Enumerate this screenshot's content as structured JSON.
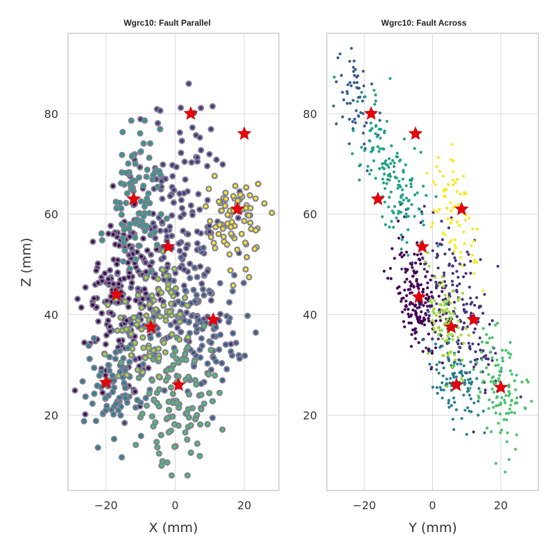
{
  "chart_data": [
    {
      "type": "scatter",
      "title": "Wgrc10: Fault Parallel",
      "xlabel": "X (mm)",
      "ylabel": "Z (mm)",
      "xlim": [
        -31,
        30
      ],
      "ylim": [
        5,
        96
      ],
      "xticks": [
        -20,
        0,
        20
      ],
      "xtick_labels": [
        "−20",
        "0",
        "20"
      ],
      "yticks": [
        20,
        40,
        60,
        80
      ],
      "ytick_labels": [
        "20",
        "40",
        "60",
        "80"
      ],
      "grid": true,
      "marker_style": "ringed",
      "colors": {
        "c1": "#440154",
        "c2": "#46327e",
        "c3": "#365c8d",
        "c4": "#277f8e",
        "c5": "#1fa187",
        "c6": "#4ac16d",
        "c7": "#a0da39",
        "c8": "#fde725",
        "ring": "#7f7f92",
        "centroid": "#e8000b"
      },
      "clusters": [
        {
          "color": "c1",
          "cx": -15,
          "cy": 45,
          "sx": 5.5,
          "sy": 8,
          "n": 190,
          "rho": 0.2
        },
        {
          "color": "c2",
          "cx": 1,
          "cy": 55,
          "sx": 8,
          "sy": 12,
          "n": 180,
          "rho": 0.1
        },
        {
          "color": "c3",
          "cx": 8,
          "cy": 38,
          "sx": 6,
          "sy": 7,
          "n": 110,
          "rho": -0.2
        },
        {
          "color": "c4",
          "cx": -18,
          "cy": 26,
          "sx": 5,
          "sy": 5,
          "n": 90,
          "rho": 0.1
        },
        {
          "color": "c5",
          "cx": -11,
          "cy": 63,
          "sx": 4,
          "sy": 8,
          "n": 90,
          "rho": 0.2
        },
        {
          "color": "c6",
          "cx": 2,
          "cy": 24,
          "sx": 6,
          "sy": 7,
          "n": 110,
          "rho": 0.0
        },
        {
          "color": "c7",
          "cx": -6,
          "cy": 39,
          "sx": 4.5,
          "sy": 5,
          "n": 90,
          "rho": 0.3
        },
        {
          "color": "c8",
          "cx": 18,
          "cy": 59,
          "sx": 4,
          "sy": 5.5,
          "n": 75,
          "rho": 0.0
        }
      ],
      "centroids": [
        {
          "x": 4.5,
          "y": 80
        },
        {
          "x": 20,
          "y": 76
        },
        {
          "x": -12,
          "y": 63
        },
        {
          "x": 18,
          "y": 61
        },
        {
          "x": -2,
          "y": 53.5
        },
        {
          "x": -17,
          "y": 44
        },
        {
          "x": -7,
          "y": 37.5
        },
        {
          "x": 11,
          "y": 39
        },
        {
          "x": -20,
          "y": 26.5
        },
        {
          "x": 1,
          "y": 26
        }
      ]
    },
    {
      "type": "scatter",
      "title": "Wgrc10: Fault Across",
      "xlabel": "Y (mm)",
      "ylabel": "",
      "xlim": [
        -31,
        31
      ],
      "ylim": [
        5,
        96
      ],
      "xticks": [
        -20,
        0,
        20
      ],
      "xtick_labels": [
        "−20",
        "0",
        "20"
      ],
      "yticks": [
        20,
        40,
        60,
        80
      ],
      "ytick_labels": [
        "20",
        "40",
        "60",
        "80"
      ],
      "grid": true,
      "marker_style": "small",
      "colors": {
        "c1": "#440154",
        "c2": "#46327e",
        "c3": "#365c8d",
        "c4": "#277f8e",
        "c5": "#1fa187",
        "c6": "#4ac16d",
        "c7": "#a0da39",
        "c8": "#fde725",
        "centroid": "#e8000b"
      },
      "clusters": [
        {
          "color": "c1",
          "cx": -4,
          "cy": 43,
          "sx": 3.5,
          "sy": 5.5,
          "n": 190,
          "rho": -0.5
        },
        {
          "color": "c2",
          "cx": 7,
          "cy": 43,
          "sx": 6,
          "sy": 9,
          "n": 180,
          "rho": -0.6
        },
        {
          "color": "c3",
          "cx": -22,
          "cy": 82,
          "sx": 3,
          "sy": 5,
          "n": 60,
          "rho": -0.5
        },
        {
          "color": "c4",
          "cx": 7,
          "cy": 27,
          "sx": 4,
          "sy": 5,
          "n": 100,
          "rho": -0.4
        },
        {
          "color": "c5",
          "cx": -12,
          "cy": 68,
          "sx": 5,
          "sy": 8,
          "n": 150,
          "rho": -0.7
        },
        {
          "color": "c6",
          "cx": 20,
          "cy": 25,
          "sx": 4,
          "sy": 6,
          "n": 110,
          "rho": -0.4
        },
        {
          "color": "c7",
          "cx": 4,
          "cy": 38,
          "sx": 2.5,
          "sy": 5,
          "n": 90,
          "rho": -0.3
        },
        {
          "color": "c8",
          "cx": 6,
          "cy": 61,
          "sx": 3.5,
          "sy": 6,
          "n": 75,
          "rho": -0.5
        }
      ],
      "centroids": [
        {
          "x": -18,
          "y": 80
        },
        {
          "x": -5,
          "y": 76
        },
        {
          "x": -16,
          "y": 63
        },
        {
          "x": 8.5,
          "y": 61
        },
        {
          "x": -3,
          "y": 53.5
        },
        {
          "x": -4,
          "y": 43.5
        },
        {
          "x": 5.5,
          "y": 37.5
        },
        {
          "x": 12,
          "y": 39
        },
        {
          "x": 7,
          "y": 26
        },
        {
          "x": 20,
          "y": 25.5
        }
      ]
    }
  ]
}
